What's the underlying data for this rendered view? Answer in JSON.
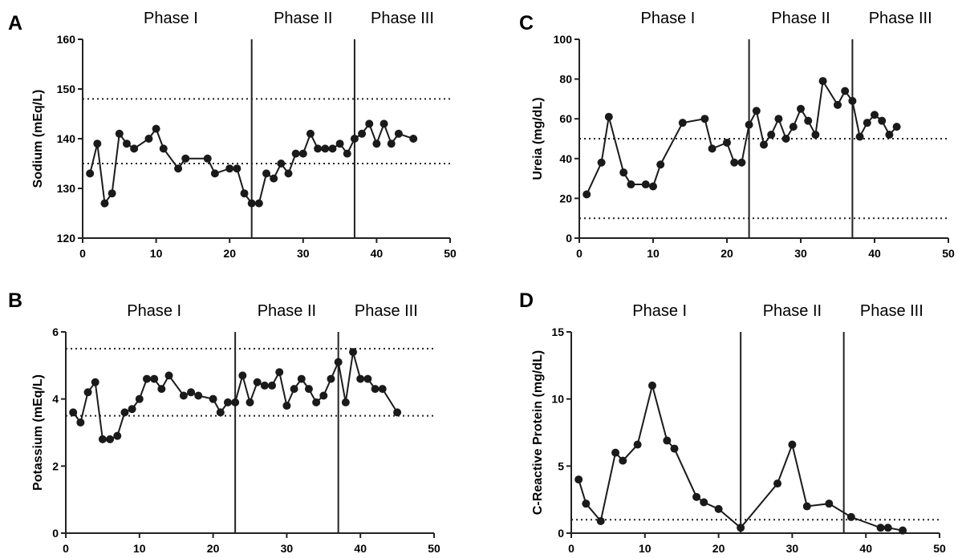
{
  "chart_data": [
    {
      "type": "line",
      "panel_letter": "A",
      "ylabel": "Sodium (mEq/L)",
      "xlabel": "",
      "xlim": [
        0,
        50
      ],
      "ylim": [
        120,
        160
      ],
      "xticks": [
        0,
        10,
        20,
        30,
        40,
        50
      ],
      "yticks": [
        120,
        130,
        140,
        150,
        160
      ],
      "phase_boundaries": [
        23,
        37
      ],
      "phases": [
        {
          "label": "Phase I",
          "x": 12
        },
        {
          "label": "Phase II",
          "x": 30
        },
        {
          "label": "Phase III",
          "x": 43.5
        }
      ],
      "reference_lines": [
        135,
        148
      ],
      "series": [
        {
          "x": [
            1,
            2,
            3,
            4,
            5,
            6,
            7,
            9,
            10,
            11,
            13,
            14,
            17,
            18,
            20,
            21,
            22,
            23,
            24,
            25,
            26,
            27,
            28,
            29,
            30,
            31,
            32,
            33,
            34,
            35,
            36,
            37,
            38,
            39,
            40,
            41,
            42,
            43,
            45
          ],
          "values": [
            133,
            139,
            127,
            129,
            141,
            139,
            138,
            140,
            142,
            138,
            134,
            136,
            136,
            133,
            134,
            134,
            129,
            127,
            127,
            133,
            132,
            135,
            133,
            137,
            137,
            141,
            138,
            138,
            138,
            139,
            137,
            140,
            141,
            143,
            139,
            143,
            139,
            141,
            140
          ]
        }
      ]
    },
    {
      "type": "line",
      "panel_letter": "B",
      "ylabel": "Potassium (mEq/L)",
      "xlabel": "",
      "xlim": [
        0,
        50
      ],
      "ylim": [
        0,
        6
      ],
      "xticks": [
        0,
        10,
        20,
        30,
        40,
        50
      ],
      "yticks": [
        0,
        2,
        4,
        6
      ],
      "phase_boundaries": [
        23,
        37
      ],
      "phases": [
        {
          "label": "Phase I",
          "x": 12
        },
        {
          "label": "Phase II",
          "x": 30
        },
        {
          "label": "Phase III",
          "x": 43.5
        }
      ],
      "reference_lines": [
        3.5,
        5.5
      ],
      "series": [
        {
          "x": [
            1,
            2,
            3,
            4,
            5,
            6,
            7,
            8,
            9,
            10,
            11,
            12,
            13,
            14,
            16,
            17,
            18,
            20,
            21,
            22,
            23,
            24,
            25,
            26,
            27,
            28,
            29,
            30,
            31,
            32,
            33,
            34,
            35,
            36,
            37,
            38,
            39,
            40,
            41,
            42,
            43,
            45
          ],
          "values": [
            3.6,
            3.3,
            4.2,
            4.5,
            2.8,
            2.8,
            2.9,
            3.6,
            3.7,
            4.0,
            4.6,
            4.6,
            4.3,
            4.7,
            4.1,
            4.2,
            4.1,
            4.0,
            3.6,
            3.9,
            3.9,
            4.7,
            3.9,
            4.5,
            4.4,
            4.4,
            4.8,
            3.8,
            4.3,
            4.6,
            4.3,
            3.9,
            4.1,
            4.6,
            5.1,
            3.9,
            5.4,
            4.6,
            4.6,
            4.3,
            4.3,
            3.6
          ]
        }
      ]
    },
    {
      "type": "line",
      "panel_letter": "C",
      "ylabel": "Ureia (mg/dL)",
      "xlabel": "",
      "xlim": [
        0,
        50
      ],
      "ylim": [
        0,
        100
      ],
      "xticks": [
        0,
        10,
        20,
        30,
        40,
        50
      ],
      "yticks": [
        0,
        20,
        40,
        60,
        80,
        100
      ],
      "phase_boundaries": [
        23,
        37
      ],
      "phases": [
        {
          "label": "Phase I",
          "x": 12
        },
        {
          "label": "Phase II",
          "x": 30
        },
        {
          "label": "Phase III",
          "x": 43.5
        }
      ],
      "reference_lines": [
        10,
        50
      ],
      "series": [
        {
          "x": [
            1,
            3,
            4,
            6,
            7,
            9,
            10,
            11,
            14,
            17,
            18,
            20,
            21,
            22,
            23,
            24,
            25,
            26,
            27,
            28,
            29,
            30,
            31,
            32,
            33,
            35,
            36,
            37,
            38,
            39,
            40,
            41,
            42,
            43
          ],
          "values": [
            22,
            38,
            61,
            33,
            27,
            27,
            26,
            37,
            58,
            60,
            45,
            48,
            38,
            38,
            57,
            64,
            47,
            52,
            60,
            50,
            56,
            65,
            59,
            52,
            79,
            67,
            74,
            69,
            51,
            58,
            62,
            59,
            52,
            56
          ]
        }
      ]
    },
    {
      "type": "line",
      "panel_letter": "D",
      "ylabel": "C-Reactive Protein (mg/dL)",
      "xlabel": "",
      "xlim": [
        0,
        50
      ],
      "ylim": [
        0,
        15
      ],
      "xticks": [
        0,
        10,
        20,
        30,
        40,
        50
      ],
      "yticks": [
        0,
        5,
        10,
        15
      ],
      "phase_boundaries": [
        23,
        37
      ],
      "phases": [
        {
          "label": "Phase I",
          "x": 12
        },
        {
          "label": "Phase II",
          "x": 30
        },
        {
          "label": "Phase III",
          "x": 43.5
        }
      ],
      "reference_lines": [
        1
      ],
      "series": [
        {
          "x": [
            1,
            2,
            4,
            6,
            7,
            9,
            11,
            13,
            14,
            17,
            18,
            20,
            23,
            28,
            30,
            32,
            35,
            38,
            42,
            43,
            45
          ],
          "values": [
            4.0,
            2.2,
            0.9,
            6.0,
            5.4,
            6.6,
            11.0,
            6.9,
            6.3,
            2.7,
            2.3,
            1.8,
            0.4,
            3.7,
            6.6,
            2.0,
            2.2,
            1.2,
            0.4,
            0.4,
            0.2
          ]
        }
      ]
    }
  ]
}
